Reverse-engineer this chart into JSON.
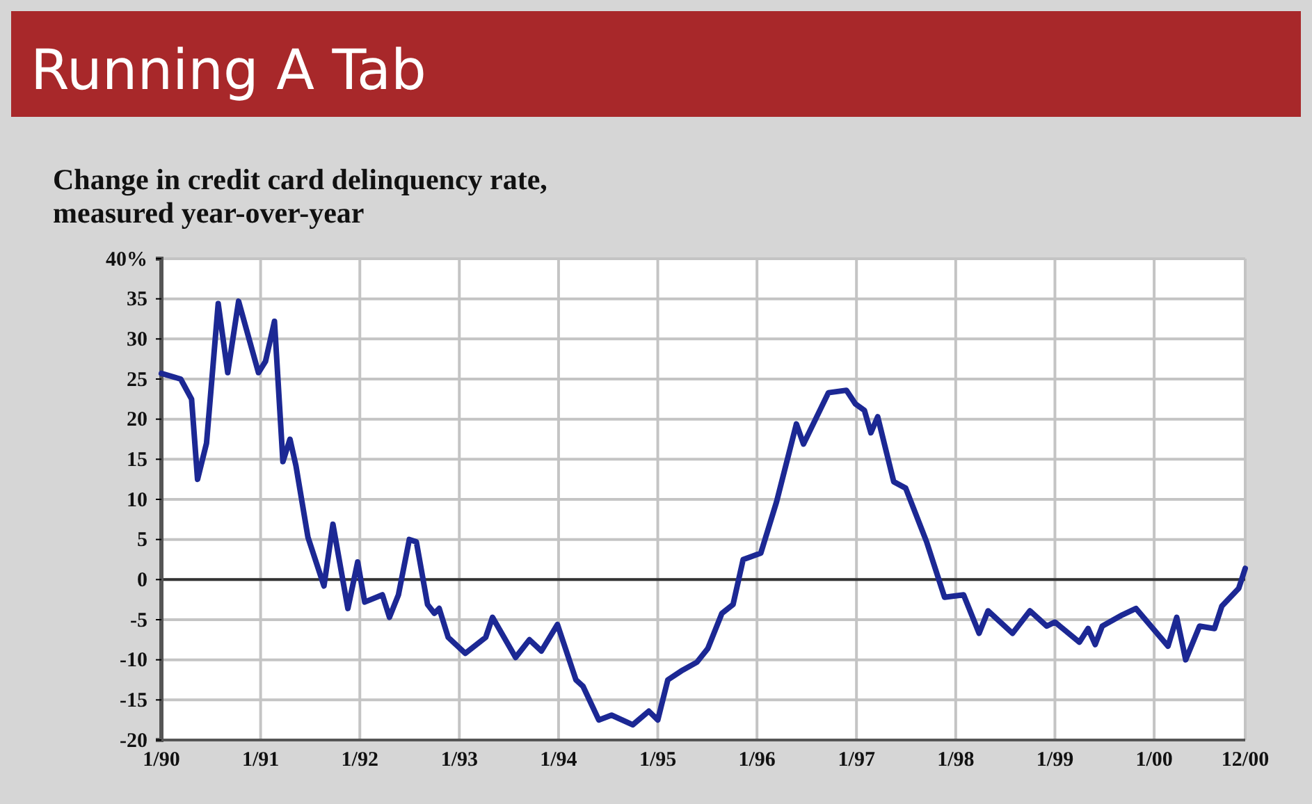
{
  "chart_data": {
    "type": "line",
    "title": "Running A Tab",
    "subtitle": "Change in credit card delinquency rate, measured year-over-year",
    "x": [
      "1990-01-01",
      "1990-03-13",
      "1990-04-22",
      "1990-05-14",
      "1990-06-16",
      "1990-07-29",
      "1990-09-02",
      "1990-10-12",
      "1990-12-24",
      "1991-01-19",
      "1991-02-21",
      "1991-03-24",
      "1991-04-19",
      "1991-05-11",
      "1991-06-24",
      "1991-08-22",
      "1991-09-24",
      "1991-11-18",
      "1991-12-24",
      "1992-01-19",
      "1992-03-24",
      "1992-04-19",
      "1992-05-22",
      "1992-07-01",
      "1992-07-27",
      "1992-09-06",
      "1992-10-01",
      "1992-10-19",
      "1992-11-21",
      "1993-01-23",
      "1993-04-08",
      "1993-05-03",
      "1993-07-27",
      "1993-09-16",
      "1993-10-30",
      "1993-12-28",
      "1994-03-06",
      "1994-04-01",
      "1994-05-29",
      "1994-07-15",
      "1994-10-01",
      "1994-11-29",
      "1995-01-01",
      "1995-02-07",
      "1995-03-28",
      "1995-05-25",
      "1995-07-04",
      "1995-08-25",
      "1995-10-05",
      "1995-11-11",
      "1995-12-06",
      "1996-01-15",
      "1996-03-13",
      "1996-05-25",
      "1996-06-20",
      "1996-09-20",
      "1996-11-25",
      "1996-12-28",
      "1997-01-30",
      "1997-02-23",
      "1997-03-20",
      "1997-05-18",
      "1997-07-01",
      "1997-09-16",
      "1997-11-21",
      "1998-01-30",
      "1998-03-28",
      "1998-04-30",
      "1998-07-29",
      "1998-10-01",
      "1998-12-02",
      "1999-01-01",
      "1999-04-01",
      "1999-05-03",
      "1999-05-29",
      "1999-06-24",
      "1999-09-06",
      "1999-10-26",
      "2000-02-21",
      "2000-03-24",
      "2000-04-26",
      "2000-06-16",
      "2000-08-10",
      "2000-09-06",
      "2000-11-07",
      "2000-12-01"
    ],
    "series": [
      {
        "color": "#1c2894",
        "values": [
          25.7,
          25,
          22.5,
          12.5,
          17,
          34.4,
          25.8,
          34.7,
          25.8,
          27.2,
          32.2,
          14.7,
          17.5,
          14.2,
          5.3,
          -0.8,
          6.9,
          -3.6,
          2.2,
          -2.8,
          -1.9,
          -4.7,
          -1.9,
          5,
          4.7,
          -3.1,
          -4.2,
          -3.6,
          -7.2,
          -9.2,
          -7.2,
          -4.7,
          -9.7,
          -7.5,
          -8.9,
          -5.6,
          -12.5,
          -13.3,
          -17.5,
          -16.9,
          -18.1,
          -16.4,
          -17.5,
          -12.5,
          -11.4,
          -10.3,
          -8.6,
          -4.2,
          -3.1,
          2.5,
          2.8,
          3.3,
          9.7,
          19.4,
          16.9,
          23.3,
          23.6,
          21.9,
          21.1,
          18.3,
          20.3,
          12.2,
          11.4,
          4.7,
          -2.2,
          -1.9,
          -6.7,
          -3.9,
          -6.7,
          -3.9,
          -5.8,
          -5.3,
          -7.8,
          -6.1,
          -8.1,
          -5.8,
          -4.4,
          -3.6,
          -8.3,
          -4.7,
          -10,
          -5.8,
          -6.1,
          -3.3,
          -1.1,
          1.4
        ]
      }
    ],
    "xlim": [
      "1990-01-01",
      "2000-12-01"
    ],
    "xticks": [
      {
        "value": "1990-01-01",
        "label": "1/90"
      },
      {
        "value": "1991-01-01",
        "label": "1/91"
      },
      {
        "value": "1992-01-01",
        "label": "1/92"
      },
      {
        "value": "1993-01-01",
        "label": "1/93"
      },
      {
        "value": "1994-01-01",
        "label": "1/94"
      },
      {
        "value": "1995-01-01",
        "label": "1/95"
      },
      {
        "value": "1996-01-01",
        "label": "1/96"
      },
      {
        "value": "1997-01-01",
        "label": "1/97"
      },
      {
        "value": "1998-01-01",
        "label": "1/98"
      },
      {
        "value": "1999-01-01",
        "label": "1/99"
      },
      {
        "value": "2000-01-01",
        "label": "1/00"
      },
      {
        "value": "2000-12-01",
        "label": "12/00"
      }
    ],
    "ylim": [
      -20,
      40
    ],
    "yticks": [
      -20,
      -15,
      -10,
      -5,
      0,
      5,
      10,
      15,
      20,
      25,
      30,
      35,
      {
        "value": 40,
        "label": "40%"
      }
    ],
    "grid": true,
    "ref_lines": [
      {
        "axis": "y",
        "value": 0,
        "color": "#333333"
      }
    ],
    "line_style": "solid"
  }
}
